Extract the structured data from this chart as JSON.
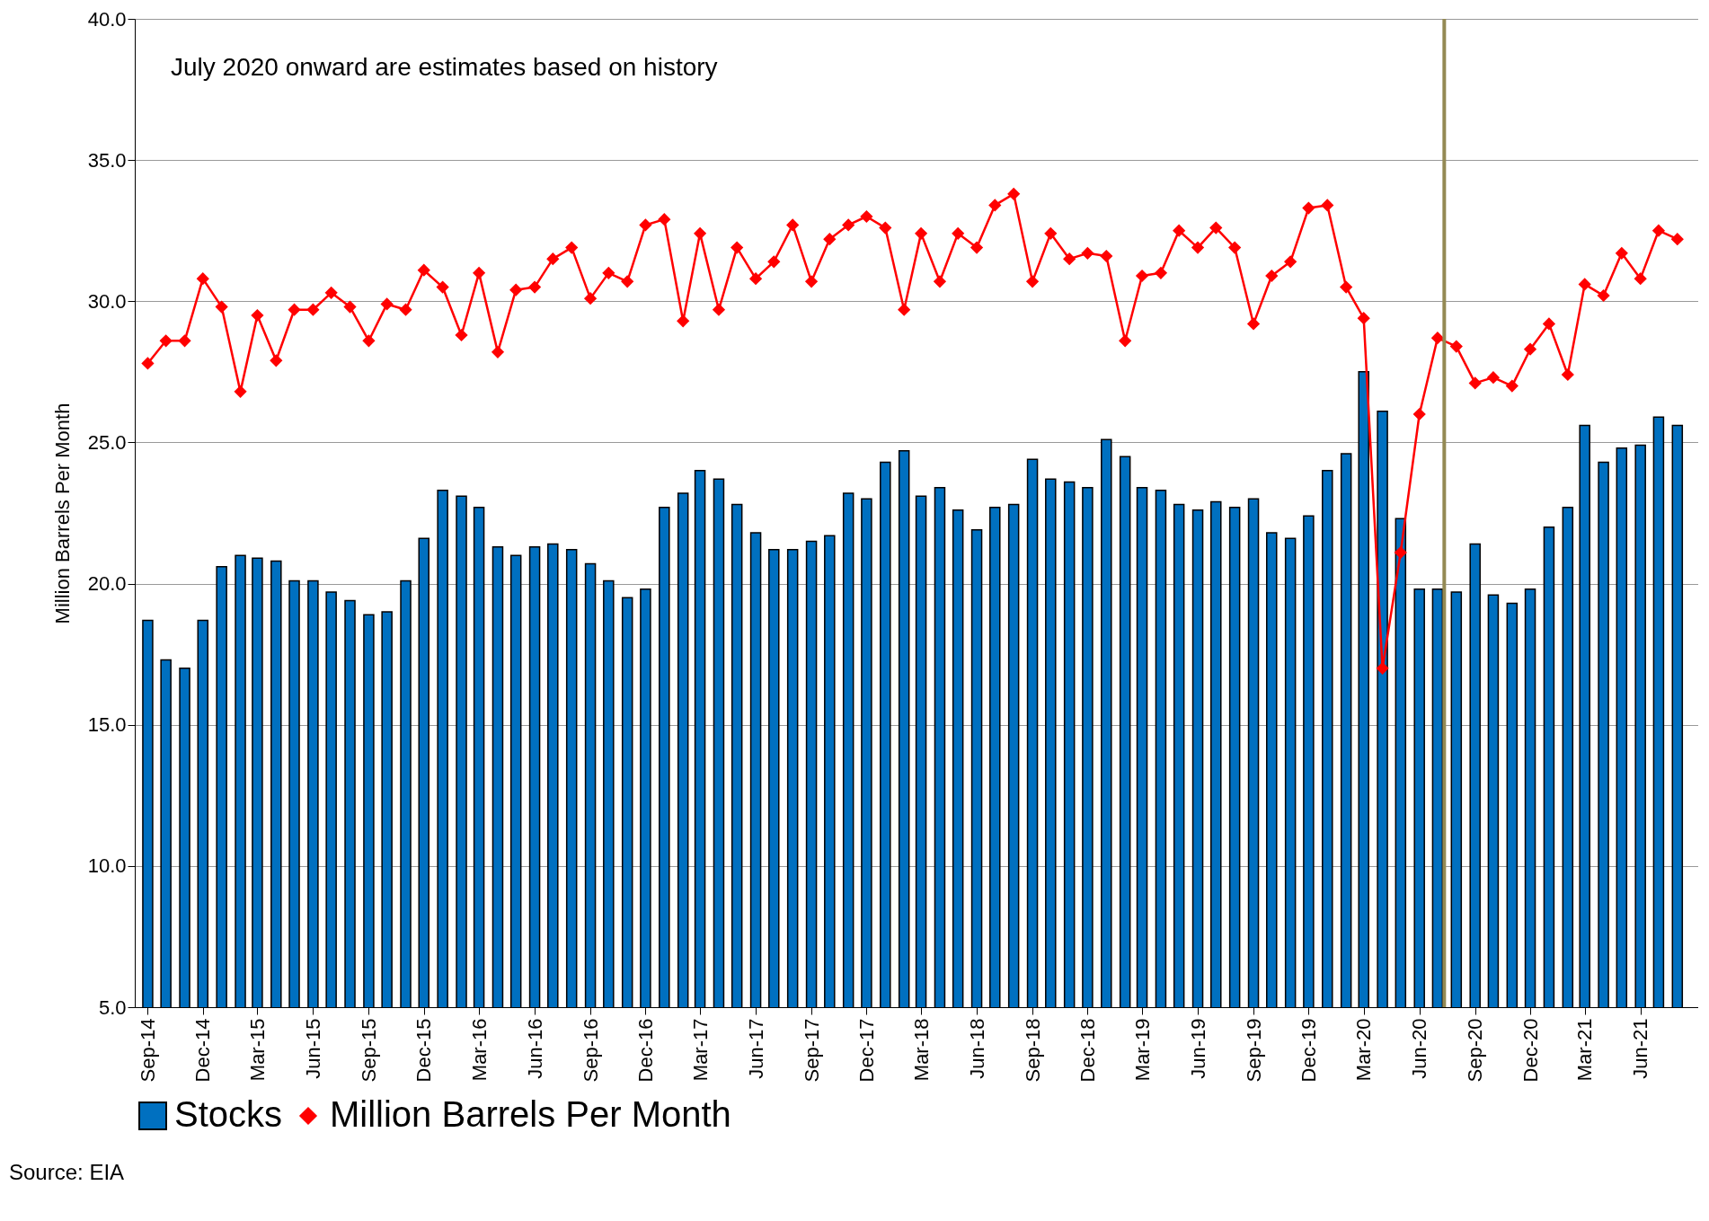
{
  "chart_data": {
    "type": "bar",
    "ylabel": "Million Barrels Per Month",
    "annotations": [
      "July 2020 onward are estimates based on history",
      "Source: EIA"
    ],
    "x": [
      "2014-09",
      "2014-10",
      "2014-11",
      "2014-12",
      "2015-01",
      "2015-02",
      "2015-03",
      "2015-04",
      "2015-05",
      "2015-06",
      "2015-07",
      "2015-08",
      "2015-09",
      "2015-10",
      "2015-11",
      "2015-12",
      "2016-01",
      "2016-02",
      "2016-03",
      "2016-04",
      "2016-05",
      "2016-06",
      "2016-07",
      "2016-08",
      "2016-09",
      "2016-10",
      "2016-11",
      "2016-12",
      "2017-01",
      "2017-02",
      "2017-03",
      "2017-04",
      "2017-05",
      "2017-06",
      "2017-07",
      "2017-08",
      "2017-09",
      "2017-10",
      "2017-11",
      "2017-12",
      "2018-01",
      "2018-02",
      "2018-03",
      "2018-04",
      "2018-05",
      "2018-06",
      "2018-07",
      "2018-08",
      "2018-09",
      "2018-10",
      "2018-11",
      "2018-12",
      "2019-01",
      "2019-02",
      "2019-03",
      "2019-04",
      "2019-05",
      "2019-06",
      "2019-07",
      "2019-08",
      "2019-09",
      "2019-10",
      "2019-11",
      "2019-12",
      "2020-01",
      "2020-02",
      "2020-03",
      "2020-04",
      "2020-05",
      "2020-06",
      "2020-07",
      "2020-08",
      "2020-09",
      "2020-10",
      "2020-11",
      "2020-12",
      "2021-01",
      "2021-02",
      "2021-03",
      "2021-04",
      "2021-05",
      "2021-06",
      "2021-07",
      "2021-08"
    ],
    "series": [
      {
        "name": "Stocks",
        "color": "#0070c0",
        "values": [
          18.7,
          17.3,
          17.0,
          18.7,
          20.6,
          21.0,
          20.9,
          20.8,
          20.1,
          20.1,
          19.7,
          19.4,
          18.9,
          19.0,
          20.1,
          21.6,
          23.3,
          23.1,
          22.7,
          21.3,
          21.0,
          21.3,
          21.4,
          21.2,
          20.7,
          20.1,
          19.5,
          19.8,
          22.7,
          23.2,
          24.0,
          23.7,
          22.8,
          21.8,
          21.2,
          21.2,
          21.5,
          21.7,
          23.2,
          23.0,
          24.3,
          24.7,
          23.1,
          23.4,
          22.6,
          21.9,
          22.7,
          22.8,
          24.4,
          23.7,
          23.6,
          23.4,
          25.1,
          24.5,
          23.4,
          23.3,
          22.8,
          22.6,
          22.9,
          22.7,
          23.0,
          21.8,
          21.6,
          22.4,
          24.0,
          24.6,
          27.5,
          26.1,
          22.3,
          19.8,
          19.8,
          19.7,
          21.4,
          19.6,
          19.3,
          19.8,
          22.0,
          22.7,
          25.6,
          24.3,
          24.8,
          24.9,
          25.9,
          25.6
        ]
      },
      {
        "name": "Million Barrels Per Month",
        "type": "line",
        "color": "#ff0000",
        "marker": "diamond",
        "line_style": "solid",
        "values": [
          27.8,
          28.6,
          28.6,
          30.8,
          29.8,
          26.8,
          29.5,
          27.9,
          29.7,
          29.7,
          30.3,
          29.8,
          28.6,
          29.9,
          29.7,
          31.1,
          30.5,
          28.8,
          31.0,
          28.2,
          30.4,
          30.5,
          31.5,
          31.9,
          30.1,
          31.0,
          30.7,
          32.7,
          32.9,
          29.3,
          32.4,
          29.7,
          31.9,
          30.8,
          31.4,
          32.7,
          30.7,
          32.2,
          32.7,
          33.0,
          32.6,
          29.7,
          32.4,
          30.7,
          32.4,
          31.9,
          33.4,
          33.8,
          30.7,
          32.4,
          31.5,
          31.7,
          31.6,
          28.6,
          30.9,
          31.0,
          32.5,
          31.9,
          32.6,
          31.9,
          29.2,
          30.9,
          31.4,
          33.3,
          33.4,
          30.5,
          29.4,
          17.0,
          21.1,
          26.0,
          28.7,
          28.4,
          27.1,
          27.3,
          27.0,
          28.3,
          29.2,
          27.4,
          30.6,
          30.2,
          31.7,
          30.8,
          32.5,
          32.2
        ]
      }
    ],
    "xlim": [
      "2014-08-18",
      "2021-08-28"
    ],
    "xticks": [
      {
        "value": "2014-09",
        "label": "Sep-14"
      },
      {
        "value": "2014-12",
        "label": "Dec-14"
      },
      {
        "value": "2015-03",
        "label": "Mar-15"
      },
      {
        "value": "2015-06",
        "label": "Jun-15"
      },
      {
        "value": "2015-09",
        "label": "Sep-15"
      },
      {
        "value": "2015-12",
        "label": "Dec-15"
      },
      {
        "value": "2016-03",
        "label": "Mar-16"
      },
      {
        "value": "2016-06",
        "label": "Jun-16"
      },
      {
        "value": "2016-09",
        "label": "Sep-16"
      },
      {
        "value": "2016-12",
        "label": "Dec-16"
      },
      {
        "value": "2017-03",
        "label": "Mar-17"
      },
      {
        "value": "2017-06",
        "label": "Jun-17"
      },
      {
        "value": "2017-09",
        "label": "Sep-17"
      },
      {
        "value": "2017-12",
        "label": "Dec-17"
      },
      {
        "value": "2018-03",
        "label": "Mar-18"
      },
      {
        "value": "2018-06",
        "label": "Jun-18"
      },
      {
        "value": "2018-09",
        "label": "Sep-18"
      },
      {
        "value": "2018-12",
        "label": "Dec-18"
      },
      {
        "value": "2019-03",
        "label": "Mar-19"
      },
      {
        "value": "2019-06",
        "label": "Jun-19"
      },
      {
        "value": "2019-09",
        "label": "Sep-19"
      },
      {
        "value": "2019-12",
        "label": "Dec-19"
      },
      {
        "value": "2020-03",
        "label": "Mar-20"
      },
      {
        "value": "2020-06",
        "label": "Jun-20"
      },
      {
        "value": "2020-09",
        "label": "Sep-20"
      },
      {
        "value": "2020-12",
        "label": "Dec-20"
      },
      {
        "value": "2021-03",
        "label": "Mar-21"
      },
      {
        "value": "2021-06",
        "label": "Jun-21"
      }
    ],
    "ylim": [
      5,
      40
    ],
    "yticks": [
      {
        "value": 5,
        "label": "5.0"
      },
      {
        "value": 10,
        "label": "10.0"
      },
      {
        "value": 15,
        "label": "15.0"
      },
      {
        "value": 20,
        "label": "20.0"
      },
      {
        "value": 25,
        "label": "25.0"
      },
      {
        "value": 30,
        "label": "30.0"
      },
      {
        "value": 35,
        "label": "35.0"
      },
      {
        "value": 40,
        "label": "40.0"
      }
    ],
    "ref_lines": [
      {
        "axis": "x",
        "value": "2020-07-12",
        "color": "#948a54"
      }
    ],
    "grid": "y",
    "legend": "bottom"
  }
}
